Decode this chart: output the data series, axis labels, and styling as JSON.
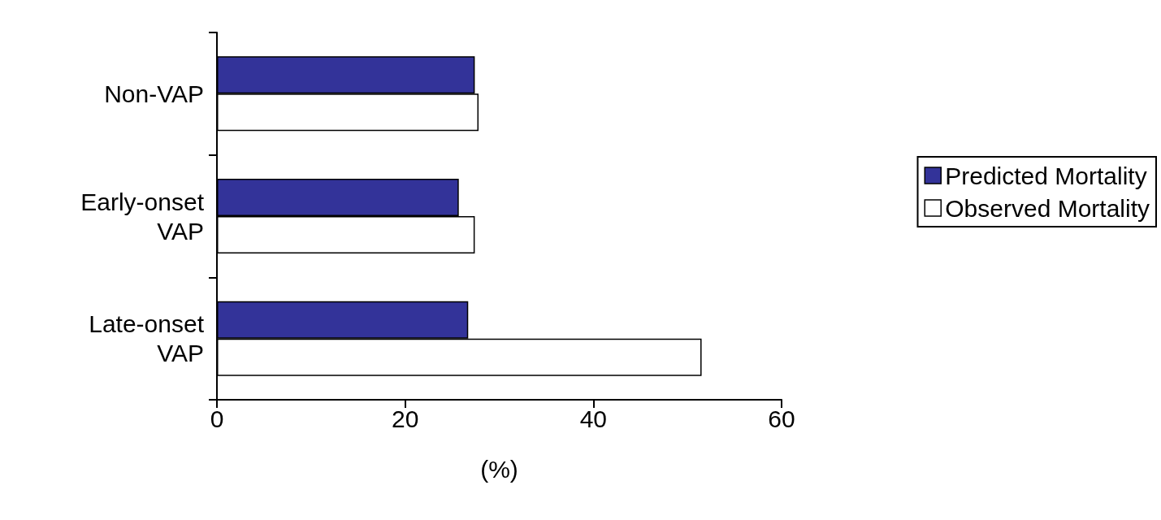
{
  "chart_data": {
    "type": "bar",
    "orientation": "horizontal",
    "categories": [
      "Non-VAP",
      "Early-onset\nVAP",
      "Late-onset\nVAP"
    ],
    "series": [
      {
        "name": "Predicted Mortality",
        "color": "#333399",
        "values": [
          27.4,
          25.7,
          26.7
        ]
      },
      {
        "name": "Observed Mortality",
        "color": "#ffffff",
        "values": [
          27.8,
          27.4,
          51.5
        ]
      }
    ],
    "xlabel": "(%)",
    "xlim": [
      0,
      60
    ],
    "xticks": [
      0,
      20,
      40,
      60
    ],
    "grid": false,
    "legend": "right"
  }
}
